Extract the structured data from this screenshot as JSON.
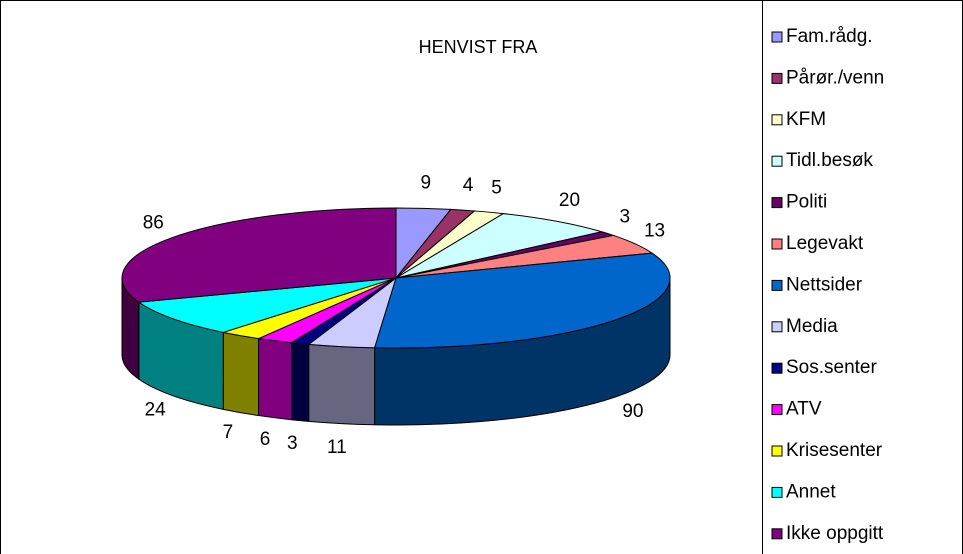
{
  "chart_data": {
    "type": "pie",
    "title": "HENVIST FRA",
    "categories": [
      "Fam.rådg.",
      "Pårør./venn",
      "KFM",
      "Tidl.besøk",
      "Politi",
      "Legevakt",
      "Nettsider",
      "Media",
      "Sos.senter",
      "ATV",
      "Krisesenter",
      "Annet",
      "Ikke oppgitt"
    ],
    "values": [
      9,
      4,
      5,
      20,
      3,
      13,
      90,
      11,
      3,
      6,
      7,
      24,
      86
    ],
    "colors": [
      "#9999ff",
      "#993366",
      "#ffffcc",
      "#ccffff",
      "#660066",
      "#ff8080",
      "#0066cc",
      "#ccccff",
      "#000080",
      "#ff00ff",
      "#ffff00",
      "#00ffff",
      "#800080"
    ],
    "legend": "right"
  }
}
